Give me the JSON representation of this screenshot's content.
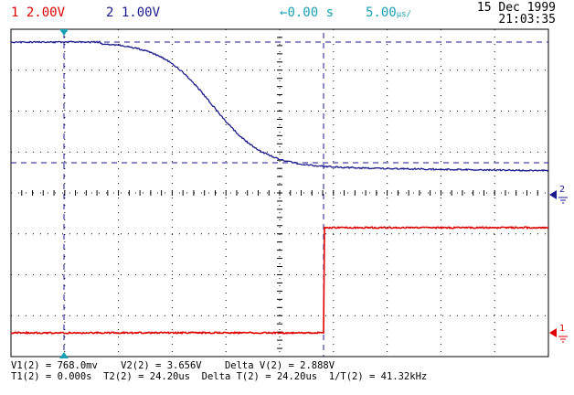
{
  "header": {
    "ch1_num": "1",
    "ch1_scale": "2.00V",
    "ch2_num": "2",
    "ch2_scale": "1.00V",
    "trigger_arrow": "left-arrow-icon",
    "time_position": "0.00 s",
    "time_div": "5.00",
    "time_div_unit": "µs/",
    "date": "15 Dec 1999",
    "time": "21:03:35"
  },
  "markers": {
    "ch2": "2",
    "ch1": "1"
  },
  "measurements": {
    "v1": "V1(2) = 768.0mv",
    "v2": "V2(2) = 3.656V",
    "delta_v": "Delta V(2) = 2.888V",
    "t1": "T1(2) = 0.000s",
    "t2": "T2(2) = 24.20us",
    "delta_t": "Delta T(2) = 24.20us",
    "inv_t": "1/T(2) = 41.32kHz"
  },
  "colors": {
    "ch1": "#e00000",
    "ch2": "#1a1a8c",
    "timebase": "#1aa0b4",
    "grid": "#000000"
  }
}
